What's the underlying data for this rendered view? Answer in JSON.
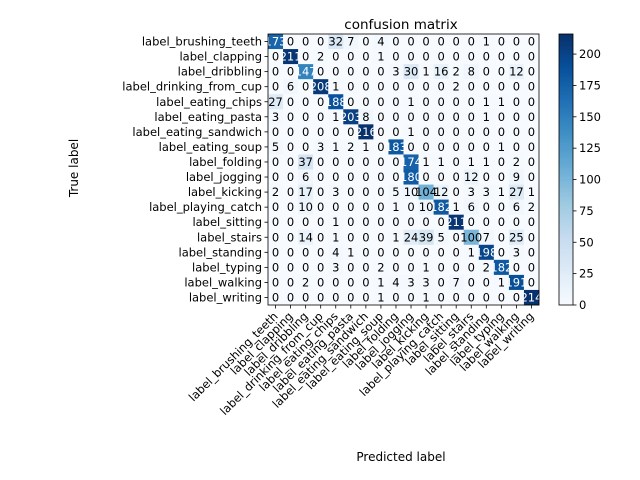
{
  "chart_data": {
    "type": "heatmap",
    "title": "confusion matrix",
    "xlabel": "Predicted label",
    "ylabel": "True label",
    "labels": [
      "label_brushing_teeth",
      "label_clapping",
      "label_dribbling",
      "label_drinking_from_cup",
      "label_eating_chips",
      "label_eating_pasta",
      "label_eating_sandwich",
      "label_eating_soup",
      "label_folding",
      "label_jogging",
      "label_kicking",
      "label_playing_catch",
      "label_sitting",
      "label_stairs",
      "label_standing",
      "label_typing",
      "label_walking",
      "label_writing"
    ],
    "matrix": [
      [
        173,
        0,
        0,
        0,
        32,
        7,
        0,
        4,
        0,
        0,
        0,
        0,
        0,
        0,
        1,
        0,
        0,
        0
      ],
      [
        0,
        211,
        0,
        2,
        0,
        0,
        0,
        1,
        0,
        0,
        0,
        0,
        0,
        0,
        0,
        0,
        0,
        0
      ],
      [
        0,
        0,
        147,
        0,
        0,
        0,
        0,
        0,
        3,
        30,
        1,
        16,
        2,
        8,
        0,
        0,
        12,
        0
      ],
      [
        0,
        6,
        0,
        208,
        1,
        0,
        0,
        0,
        0,
        0,
        0,
        0,
        2,
        0,
        0,
        0,
        0,
        0
      ],
      [
        27,
        0,
        0,
        0,
        188,
        0,
        0,
        0,
        0,
        1,
        0,
        0,
        0,
        0,
        1,
        1,
        0,
        0
      ],
      [
        3,
        0,
        0,
        0,
        1,
        203,
        8,
        0,
        0,
        0,
        0,
        0,
        0,
        0,
        1,
        0,
        0,
        0
      ],
      [
        0,
        0,
        0,
        0,
        0,
        0,
        216,
        0,
        0,
        1,
        0,
        0,
        0,
        0,
        0,
        0,
        0,
        0
      ],
      [
        5,
        0,
        0,
        3,
        1,
        2,
        1,
        0,
        183,
        0,
        0,
        0,
        0,
        0,
        0,
        1,
        0,
        0
      ],
      [
        0,
        0,
        37,
        0,
        0,
        0,
        0,
        0,
        0,
        174,
        1,
        1,
        0,
        1,
        1,
        0,
        2,
        0
      ],
      [
        0,
        0,
        6,
        0,
        0,
        0,
        0,
        0,
        0,
        180,
        0,
        0,
        0,
        12,
        0,
        0,
        9,
        0
      ],
      [
        2,
        0,
        17,
        0,
        3,
        0,
        0,
        0,
        5,
        10,
        104,
        12,
        0,
        3,
        3,
        1,
        27,
        1
      ],
      [
        0,
        0,
        10,
        0,
        0,
        0,
        0,
        0,
        1,
        0,
        10,
        182,
        1,
        6,
        0,
        0,
        6,
        2
      ],
      [
        0,
        0,
        0,
        0,
        1,
        0,
        0,
        0,
        0,
        0,
        0,
        0,
        211,
        0,
        0,
        0,
        0,
        0
      ],
      [
        0,
        0,
        14,
        0,
        1,
        0,
        0,
        0,
        1,
        24,
        39,
        5,
        0,
        100,
        7,
        0,
        25,
        0
      ],
      [
        0,
        0,
        0,
        0,
        4,
        1,
        0,
        0,
        0,
        0,
        0,
        0,
        0,
        1,
        198,
        0,
        3,
        0
      ],
      [
        0,
        0,
        0,
        0,
        3,
        0,
        0,
        2,
        0,
        0,
        1,
        0,
        0,
        0,
        2,
        182,
        0,
        0
      ],
      [
        0,
        0,
        2,
        0,
        0,
        0,
        0,
        1,
        4,
        3,
        3,
        0,
        7,
        0,
        0,
        1,
        191,
        0
      ],
      [
        0,
        0,
        0,
        0,
        0,
        0,
        0,
        1,
        0,
        0,
        1,
        0,
        0,
        0,
        0,
        0,
        0,
        214
      ]
    ],
    "vmin": 0,
    "vmax": 216,
    "colormap": "Blues",
    "colorbar_ticks": [
      0,
      25,
      50,
      75,
      100,
      125,
      150,
      175,
      200
    ],
    "grid": false,
    "legend": "colorbar-right"
  }
}
